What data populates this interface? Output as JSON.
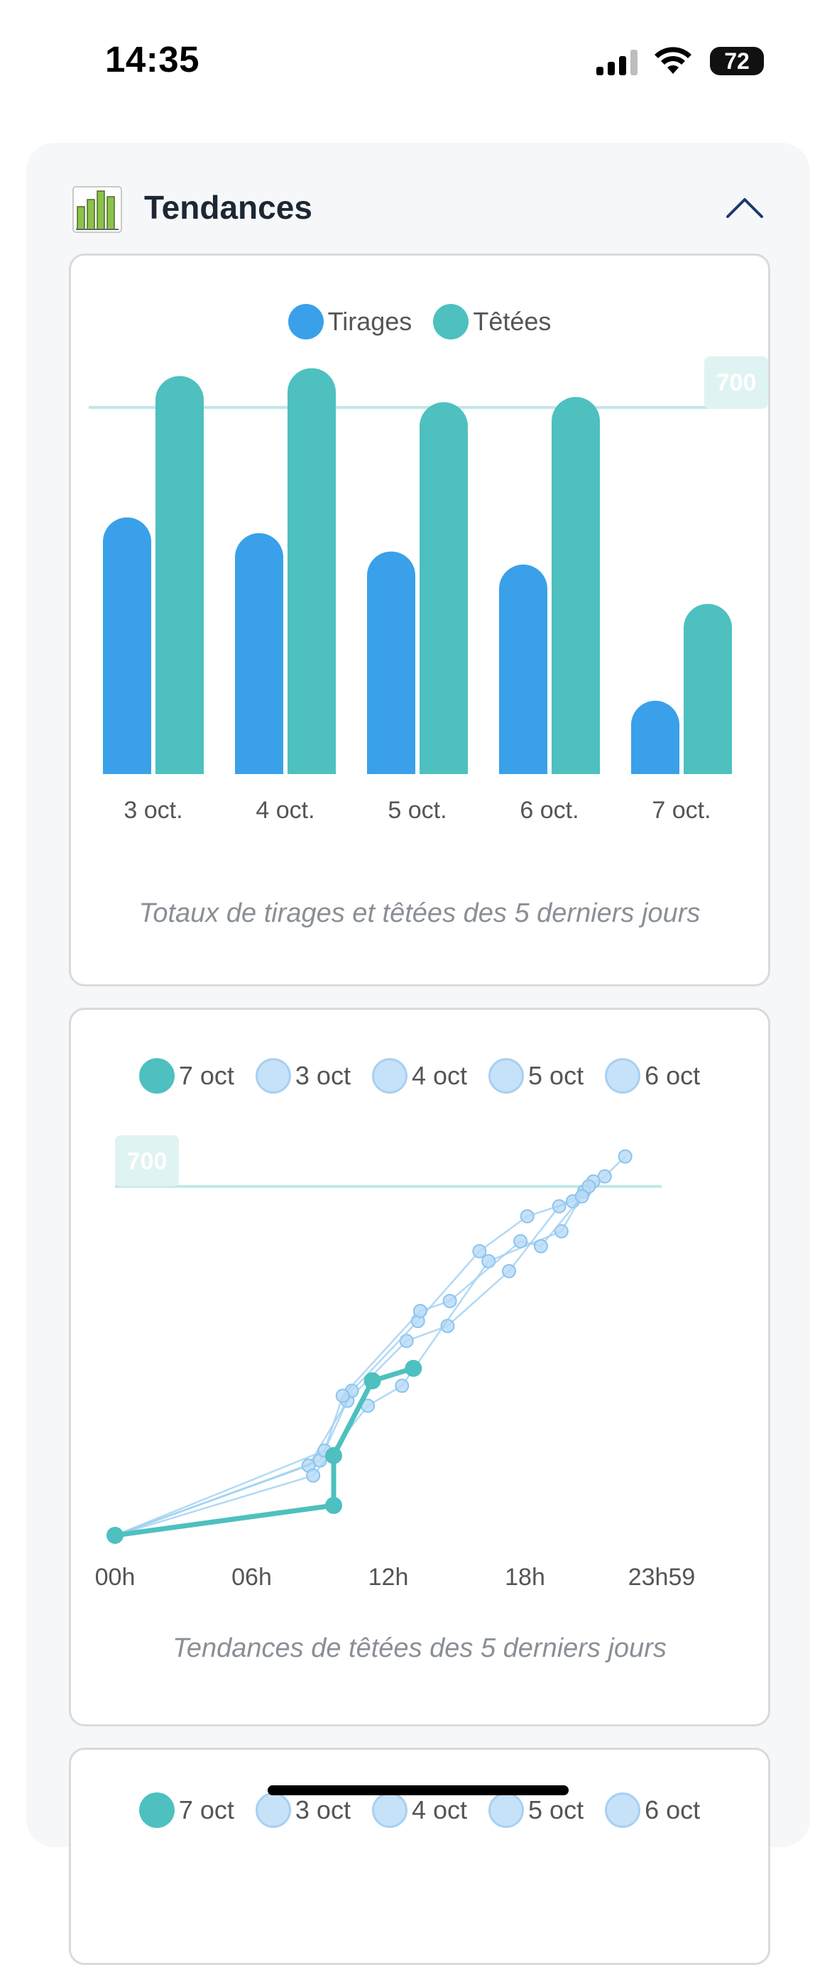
{
  "status_bar": {
    "time": "14:35",
    "battery": "72",
    "icons": [
      "signal-icon",
      "wifi-icon",
      "battery-icon"
    ]
  },
  "section": {
    "title": "Tendances",
    "icon": "bar-chart-icon",
    "collapse_icon": "chevron-up-icon"
  },
  "colors": {
    "tirages": "#3aa0ea",
    "tetees": "#4dc0bf",
    "pale_series": "#9fcff2",
    "threshold": "#bfe7e6"
  },
  "bar_card": {
    "legend": [
      "Tirages",
      "Têtées"
    ],
    "caption": "Totaux de tirages et têtées des 5 derniers jours"
  },
  "line_card": {
    "legend": [
      "7 oct",
      "3 oct",
      "4 oct",
      "5 oct",
      "6 oct"
    ],
    "caption": "Tendances de têtées des 5 derniers jours"
  },
  "third_card": {
    "legend": [
      "7 oct",
      "3 oct",
      "4 oct",
      "5 oct",
      "6 oct"
    ]
  },
  "chart_data": [
    {
      "type": "bar",
      "categories": [
        "3 oct.",
        "4 oct.",
        "5 oct.",
        "6 oct.",
        "7 oct."
      ],
      "series": [
        {
          "name": "Tirages",
          "values": [
            490,
            460,
            425,
            400,
            140
          ]
        },
        {
          "name": "Têtées",
          "values": [
            760,
            775,
            710,
            720,
            325
          ]
        }
      ],
      "threshold": 700,
      "threshold_label": "700",
      "ylim": [
        0,
        800
      ],
      "title": "",
      "xlabel": "",
      "ylabel": "",
      "legend_position": "top-center",
      "grid": false
    },
    {
      "type": "line",
      "x_ticks": [
        "00h",
        "06h",
        "12h",
        "18h",
        "23h59"
      ],
      "xlim": [
        0,
        24
      ],
      "ylim": [
        0,
        800
      ],
      "threshold": 700,
      "threshold_label": "700",
      "series": [
        {
          "name": "7 oct",
          "x": [
            0,
            9.6,
            9.6,
            11.3,
            13.1
          ],
          "y": [
            0,
            60,
            160,
            310,
            335
          ]
        },
        {
          "name": "3 oct",
          "x": [
            0,
            8.5,
            10.2,
            12.8,
            14.6,
            17.3,
            19.5,
            21.5,
            22.4
          ],
          "y": [
            0,
            140,
            270,
            390,
            420,
            530,
            660,
            720,
            760
          ]
        },
        {
          "name": "4 oct",
          "x": [
            0,
            9.0,
            10.4,
            13.3,
            16.0,
            18.1,
            20.1,
            21.0
          ],
          "y": [
            0,
            150,
            290,
            430,
            570,
            640,
            670,
            710
          ]
        },
        {
          "name": "5 oct",
          "x": [
            0,
            8.7,
            11.1,
            12.6,
            16.4,
            19.6,
            20.6,
            20.8
          ],
          "y": [
            0,
            120,
            260,
            300,
            550,
            610,
            690,
            700
          ]
        },
        {
          "name": "6 oct",
          "x": [
            0,
            9.2,
            10.0,
            13.4,
            14.7,
            17.8,
            18.7,
            20.5
          ],
          "y": [
            0,
            170,
            280,
            450,
            470,
            590,
            580,
            680
          ]
        }
      ],
      "title": "",
      "xlabel": "",
      "ylabel": "",
      "legend_position": "top-center",
      "grid": false
    }
  ]
}
